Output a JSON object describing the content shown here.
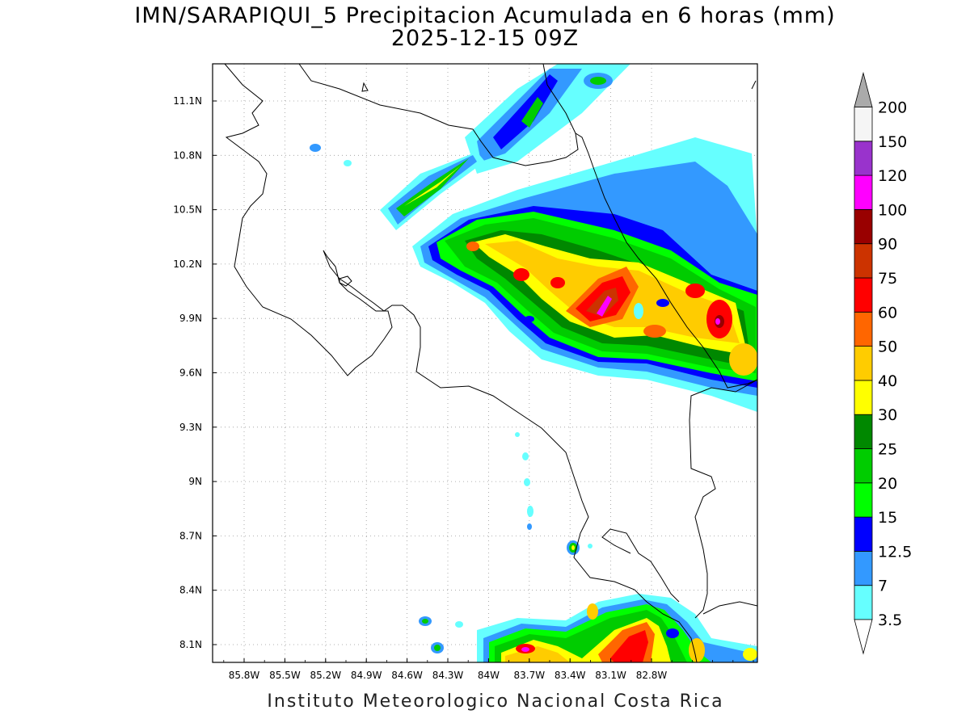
{
  "title": {
    "line1": "IMN/SARAPIQUI_5 Precipitacion Acumulada en 6 horas (mm)",
    "line2": "2025-12-15 09Z"
  },
  "footer": "Instituto Meteorologico Nacional Costa Rica",
  "axes": {
    "lon_ticks": [
      "85.8W",
      "85.5W",
      "85.2W",
      "84.9W",
      "84.6W",
      "84.3W",
      "84W",
      "83.7W",
      "83.4W",
      "83.1W",
      "82.8W"
    ],
    "lat_ticks": [
      "11.1N",
      "10.8N",
      "10.5N",
      "10.2N",
      "9.9N",
      "9.6N",
      "9.3N",
      "9N",
      "8.7N",
      "8.4N",
      "8.1N"
    ],
    "grid": "dotted"
  },
  "colorbar": {
    "labels": [
      "3.5",
      "7",
      "12.5",
      "15",
      "20",
      "25",
      "30",
      "40",
      "50",
      "60",
      "75",
      "90",
      "100",
      "120",
      "150",
      "200"
    ],
    "colors": [
      "#66ffff",
      "#3399ff",
      "#0000ff",
      "#00ff00",
      "#00cc00",
      "#008800",
      "#ffff00",
      "#ffcc00",
      "#ff6600",
      "#ff0000",
      "#cc3300",
      "#990000",
      "#ff00ff",
      "#9933cc",
      "#f5f5f5",
      "#aaaaaa"
    ]
  }
}
